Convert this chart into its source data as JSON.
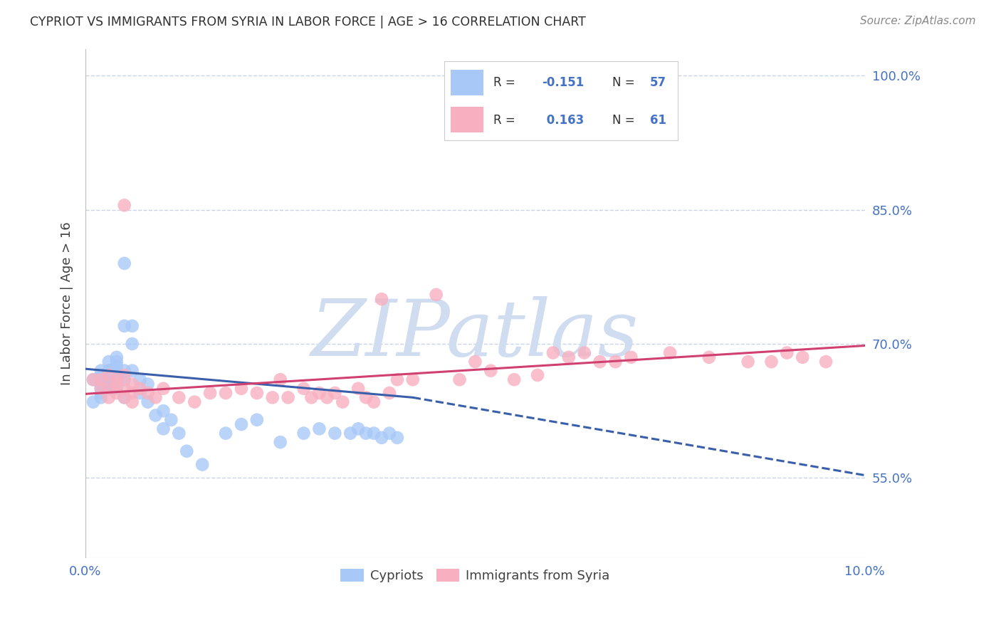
{
  "title": "CYPRIOT VS IMMIGRANTS FROM SYRIA IN LABOR FORCE | AGE > 16 CORRELATION CHART",
  "source": "Source: ZipAtlas.com",
  "ylabel": "In Labor Force | Age > 16",
  "x_min": 0.0,
  "x_max": 0.1,
  "y_min": 0.46,
  "y_max": 1.03,
  "y_ticks": [
    0.55,
    0.7,
    0.85,
    1.0
  ],
  "y_tick_labels": [
    "55.0%",
    "70.0%",
    "85.0%",
    "100.0%"
  ],
  "x_ticks": [
    0.0,
    0.02,
    0.04,
    0.06,
    0.08,
    0.1
  ],
  "x_tick_labels": [
    "0.0%",
    "",
    "",
    "",
    "",
    "10.0%"
  ],
  "color_cypriot": "#a8c8f8",
  "color_syria": "#f8b0c0",
  "color_line_cypriot": "#3a5faa",
  "color_line_syria": "#d04070",
  "watermark_color": "#d0ddf0",
  "background_color": "#ffffff",
  "grid_color": "#c8d4e8",
  "title_color": "#303030",
  "source_color": "#888888",
  "axis_tick_color": "#4472c4",
  "legend_r1_label": "R = ",
  "legend_r1_value": "-0.151",
  "legend_n1_label": "N = ",
  "legend_n1_value": "57",
  "legend_r2_label": "R =  ",
  "legend_r2_value": "0.163",
  "legend_n2_label": "N = ",
  "legend_n2_value": "61",
  "cypriot_scatter_x": [
    0.001,
    0.001,
    0.002,
    0.002,
    0.002,
    0.002,
    0.002,
    0.002,
    0.003,
    0.003,
    0.003,
    0.003,
    0.003,
    0.003,
    0.003,
    0.003,
    0.003,
    0.004,
    0.004,
    0.004,
    0.004,
    0.004,
    0.004,
    0.004,
    0.005,
    0.005,
    0.005,
    0.005,
    0.005,
    0.006,
    0.006,
    0.006,
    0.007,
    0.007,
    0.008,
    0.008,
    0.009,
    0.01,
    0.01,
    0.011,
    0.012,
    0.013,
    0.015,
    0.018,
    0.02,
    0.022,
    0.025,
    0.028,
    0.03,
    0.032,
    0.034,
    0.035,
    0.036,
    0.037,
    0.038,
    0.039,
    0.04
  ],
  "cypriot_scatter_y": [
    0.66,
    0.635,
    0.67,
    0.655,
    0.65,
    0.64,
    0.665,
    0.645,
    0.68,
    0.67,
    0.66,
    0.65,
    0.665,
    0.66,
    0.655,
    0.67,
    0.65,
    0.685,
    0.675,
    0.67,
    0.66,
    0.65,
    0.68,
    0.665,
    0.79,
    0.72,
    0.67,
    0.66,
    0.64,
    0.72,
    0.7,
    0.67,
    0.66,
    0.645,
    0.655,
    0.635,
    0.62,
    0.625,
    0.605,
    0.615,
    0.6,
    0.58,
    0.565,
    0.6,
    0.61,
    0.615,
    0.59,
    0.6,
    0.605,
    0.6,
    0.6,
    0.605,
    0.6,
    0.6,
    0.595,
    0.6,
    0.595
  ],
  "syria_scatter_x": [
    0.001,
    0.002,
    0.002,
    0.003,
    0.003,
    0.003,
    0.004,
    0.004,
    0.004,
    0.005,
    0.005,
    0.005,
    0.005,
    0.006,
    0.006,
    0.006,
    0.007,
    0.008,
    0.009,
    0.01,
    0.012,
    0.014,
    0.016,
    0.018,
    0.02,
    0.022,
    0.024,
    0.025,
    0.026,
    0.028,
    0.029,
    0.03,
    0.031,
    0.032,
    0.033,
    0.035,
    0.036,
    0.037,
    0.038,
    0.039,
    0.04,
    0.042,
    0.045,
    0.048,
    0.05,
    0.052,
    0.055,
    0.058,
    0.06,
    0.062,
    0.064,
    0.066,
    0.068,
    0.07,
    0.075,
    0.08,
    0.085,
    0.088,
    0.09,
    0.092,
    0.095
  ],
  "syria_scatter_y": [
    0.66,
    0.66,
    0.65,
    0.665,
    0.65,
    0.64,
    0.655,
    0.66,
    0.645,
    0.665,
    0.855,
    0.65,
    0.64,
    0.655,
    0.645,
    0.635,
    0.65,
    0.645,
    0.64,
    0.65,
    0.64,
    0.635,
    0.645,
    0.645,
    0.65,
    0.645,
    0.64,
    0.66,
    0.64,
    0.65,
    0.64,
    0.645,
    0.64,
    0.645,
    0.635,
    0.65,
    0.64,
    0.635,
    0.75,
    0.645,
    0.66,
    0.66,
    0.755,
    0.66,
    0.68,
    0.67,
    0.66,
    0.665,
    0.69,
    0.685,
    0.69,
    0.68,
    0.68,
    0.685,
    0.69,
    0.685,
    0.68,
    0.68,
    0.69,
    0.685,
    0.68
  ],
  "cyp_line_x0": 0.0,
  "cyp_line_x1": 0.042,
  "cyp_line_x2": 0.1,
  "cyp_line_y0": 0.672,
  "cyp_line_y1": 0.64,
  "cyp_line_y2": 0.553,
  "syr_line_x0": 0.0,
  "syr_line_x1": 0.1,
  "syr_line_y0": 0.644,
  "syr_line_y1": 0.698
}
